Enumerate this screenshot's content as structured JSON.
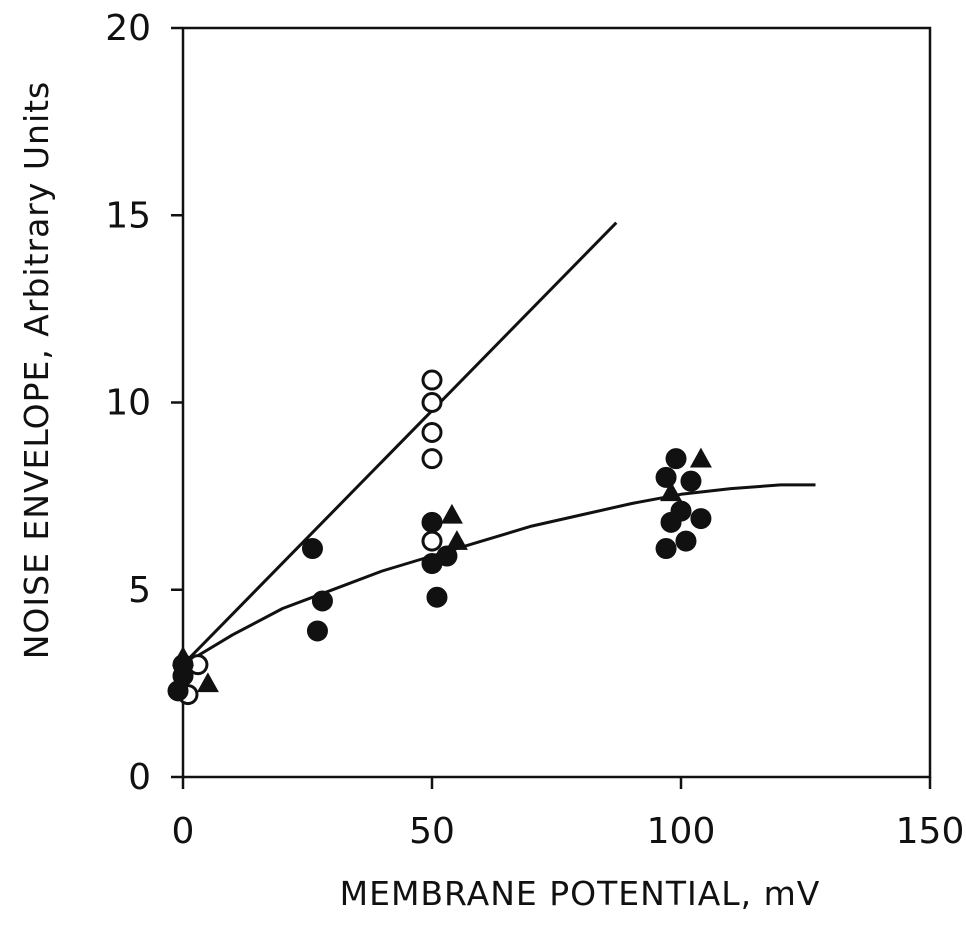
{
  "chart_data": {
    "type": "scatter",
    "title": "",
    "xlabel": "MEMBRANE POTENTIAL, mV",
    "ylabel": "NOISE ENVELOPE, Arbitrary Units",
    "xlim": [
      0,
      150
    ],
    "ylim": [
      0,
      20
    ],
    "xticks": [
      "0",
      "50",
      "100",
      "150"
    ],
    "yticks": [
      "0",
      "5",
      "10",
      "15",
      "20"
    ],
    "grid": false,
    "legend": "none",
    "series": [
      {
        "marker": "open-circle",
        "points": [
          [
            1,
            2.2
          ],
          [
            3,
            3.0
          ],
          [
            50,
            10.6
          ],
          [
            50,
            10.0
          ],
          [
            50,
            9.2
          ],
          [
            50,
            8.5
          ],
          [
            50,
            6.3
          ]
        ]
      },
      {
        "marker": "filled-circle",
        "points": [
          [
            -1,
            2.3
          ],
          [
            0,
            2.7
          ],
          [
            0,
            3.0
          ],
          [
            26,
            6.1
          ],
          [
            27,
            3.9
          ],
          [
            28,
            4.7
          ],
          [
            50,
            6.8
          ],
          [
            50,
            5.7
          ],
          [
            51,
            4.8
          ],
          [
            53,
            5.9
          ],
          [
            97,
            8.0
          ],
          [
            97,
            6.1
          ],
          [
            98,
            6.8
          ],
          [
            99,
            8.5
          ],
          [
            100,
            7.1
          ],
          [
            101,
            6.3
          ],
          [
            102,
            7.9
          ],
          [
            104,
            6.9
          ]
        ]
      },
      {
        "marker": "filled-triangle",
        "points": [
          [
            0,
            3.2
          ],
          [
            5,
            2.5
          ],
          [
            54,
            7.0
          ],
          [
            55,
            6.3
          ],
          [
            98,
            7.6
          ],
          [
            104,
            8.5
          ]
        ]
      }
    ],
    "lines": [
      {
        "kind": "linear",
        "points": [
          [
            0,
            3.0
          ],
          [
            87,
            14.8
          ]
        ]
      },
      {
        "kind": "saturating-curve",
        "points": [
          [
            0,
            3.0
          ],
          [
            10,
            3.8
          ],
          [
            20,
            4.5
          ],
          [
            30,
            5.0
          ],
          [
            40,
            5.5
          ],
          [
            50,
            5.9
          ],
          [
            60,
            6.3
          ],
          [
            70,
            6.7
          ],
          [
            80,
            7.0
          ],
          [
            90,
            7.3
          ],
          [
            100,
            7.55
          ],
          [
            110,
            7.7
          ],
          [
            120,
            7.8
          ],
          [
            127,
            7.8
          ]
        ]
      }
    ]
  }
}
